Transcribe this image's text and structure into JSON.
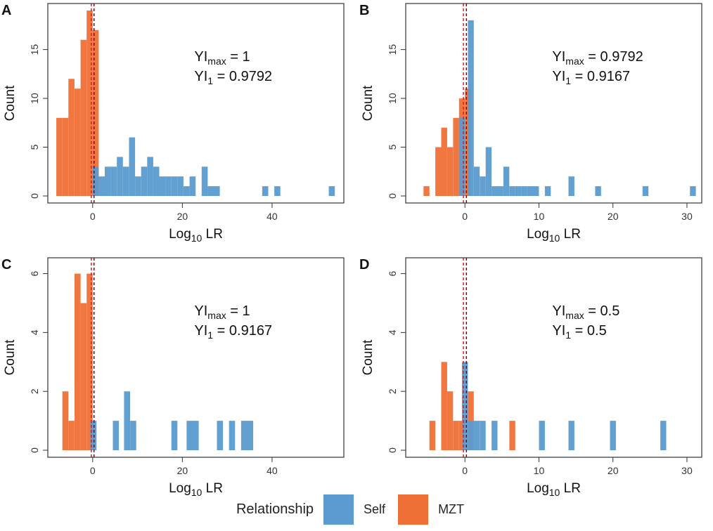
{
  "colors": {
    "self": "#5b9bd0",
    "mzt": "#ef7036",
    "threshold": "#8b0000",
    "threshold2": "#e31a1c",
    "axis": "#333333"
  },
  "chart_data": [
    {
      "id": "A",
      "type": "histogram",
      "panel_label": "A",
      "xlabel_main": "Log",
      "xlabel_sub": "10",
      "xlabel_tail": " LR",
      "ylabel": "Count",
      "xlim": [
        -10,
        56
      ],
      "ylim": [
        0,
        19
      ],
      "xticks": [
        0,
        20,
        40
      ],
      "yticks": [
        0,
        5,
        10,
        15
      ],
      "binwidth": 1.35,
      "annotations": {
        "line1_prefix": "YI",
        "line1_sub": "max",
        "line1_value": " = 1",
        "line2_prefix": "YI",
        "line2_sub": "1",
        "line2_value": " = 0.9792"
      },
      "thresholds": [
        -0.3,
        0.3
      ],
      "series": [
        {
          "name": "MZT",
          "bars": [
            [
              -8.1,
              8
            ],
            [
              -6.75,
              8
            ],
            [
              -5.4,
              12
            ],
            [
              -4.05,
              11
            ],
            [
              -2.7,
              16
            ],
            [
              -1.35,
              19
            ],
            [
              0,
              17
            ]
          ]
        },
        {
          "name": "Self",
          "bars": [
            [
              0,
              3
            ],
            [
              1.35,
              2
            ],
            [
              2.7,
              3
            ],
            [
              4.05,
              3
            ],
            [
              5.4,
              4
            ],
            [
              6.75,
              3
            ],
            [
              8.1,
              6
            ],
            [
              9.45,
              2
            ],
            [
              10.8,
              3
            ],
            [
              12.15,
              4
            ],
            [
              13.5,
              3
            ],
            [
              14.85,
              2
            ],
            [
              16.2,
              2
            ],
            [
              17.55,
              2
            ],
            [
              18.9,
              2
            ],
            [
              20.25,
              1
            ],
            [
              21.6,
              2
            ],
            [
              22.95,
              0
            ],
            [
              24.3,
              3
            ],
            [
              25.65,
              1
            ],
            [
              27,
              1
            ],
            [
              37.8,
              1
            ],
            [
              40.5,
              1
            ],
            [
              52.65,
              1
            ]
          ]
        }
      ]
    },
    {
      "id": "B",
      "type": "histogram",
      "panel_label": "B",
      "xlabel_main": "Log",
      "xlabel_sub": "10",
      "xlabel_tail": " LR",
      "ylabel": "Count",
      "xlim": [
        -8,
        32
      ],
      "ylim": [
        0,
        19
      ],
      "xticks": [
        0,
        10,
        20,
        30
      ],
      "yticks": [
        0,
        5,
        10,
        15
      ],
      "binwidth": 0.8,
      "annotations": {
        "line1_prefix": "YI",
        "line1_sub": "max",
        "line1_value": " = 0.9792",
        "line2_prefix": "YI",
        "line2_sub": "1",
        "line2_value": " = 0.9167"
      },
      "thresholds": [
        -0.2,
        0.2
      ],
      "series": [
        {
          "name": "MZT",
          "bars": [
            [
              -5.6,
              1
            ],
            [
              -4,
              5
            ],
            [
              -3.2,
              7
            ],
            [
              -2.4,
              5
            ],
            [
              -1.6,
              8
            ],
            [
              -0.8,
              10
            ],
            [
              0,
              11
            ]
          ]
        },
        {
          "name": "Self",
          "bars": [
            [
              -0.8,
              8
            ],
            [
              0.4,
              18
            ],
            [
              1.2,
              3
            ],
            [
              2,
              2
            ],
            [
              2.8,
              5
            ],
            [
              3.6,
              1
            ],
            [
              4.4,
              1
            ],
            [
              5.2,
              3
            ],
            [
              6,
              1
            ],
            [
              6.8,
              1
            ],
            [
              7.6,
              1
            ],
            [
              8.4,
              1
            ],
            [
              9.2,
              1
            ],
            [
              10.8,
              1
            ],
            [
              14,
              2
            ],
            [
              17.6,
              1
            ],
            [
              24,
              1
            ],
            [
              30.4,
              1
            ]
          ]
        }
      ]
    },
    {
      "id": "C",
      "type": "histogram",
      "panel_label": "C",
      "xlabel_main": "Log",
      "xlabel_sub": "10",
      "xlabel_tail": " LR",
      "ylabel": "Count",
      "xlim": [
        -10,
        56
      ],
      "ylim": [
        0,
        6.3
      ],
      "xticks": [
        0,
        20,
        40
      ],
      "yticks": [
        0,
        2,
        4,
        6
      ],
      "binwidth": 1.35,
      "annotations": {
        "line1_prefix": "YI",
        "line1_sub": "max",
        "line1_value": " = 1",
        "line2_prefix": "YI",
        "line2_sub": "1",
        "line2_value": " = 0.9167"
      },
      "thresholds": [
        -0.3,
        0.3
      ],
      "series": [
        {
          "name": "MZT",
          "bars": [
            [
              -6.75,
              2
            ],
            [
              -5.4,
              1
            ],
            [
              -4.05,
              6
            ],
            [
              -2.7,
              5
            ],
            [
              -1.35,
              6
            ]
          ]
        },
        {
          "name": "Self",
          "bars": [
            [
              -0.5,
              1
            ],
            [
              4.5,
              1
            ],
            [
              7,
              2
            ],
            [
              8.35,
              1
            ],
            [
              17.55,
              1
            ],
            [
              20.95,
              1
            ],
            [
              22.3,
              1
            ],
            [
              27.7,
              1
            ],
            [
              30.4,
              1
            ],
            [
              33.1,
              1
            ],
            [
              34.45,
              1
            ]
          ]
        }
      ]
    },
    {
      "id": "D",
      "type": "histogram",
      "panel_label": "D",
      "xlabel_main": "Log",
      "xlabel_sub": "10",
      "xlabel_tail": " LR",
      "ylabel": "Count",
      "xlim": [
        -8,
        32
      ],
      "ylim": [
        0,
        6.3
      ],
      "xticks": [
        0,
        10,
        20,
        30
      ],
      "yticks": [
        0,
        2,
        4,
        6
      ],
      "binwidth": 0.8,
      "annotations": {
        "line1_prefix": "YI",
        "line1_sub": "max",
        "line1_value": " = 0.5",
        "line2_prefix": "YI",
        "line2_sub": "1",
        "line2_value": " = 0.5"
      },
      "thresholds": [
        -0.2,
        0.2
      ],
      "series": [
        {
          "name": "MZT",
          "bars": [
            [
              -4.8,
              1
            ],
            [
              -3.2,
              3
            ],
            [
              -2.4,
              2
            ],
            [
              -1.6,
              1
            ],
            [
              -0.8,
              1
            ],
            [
              0.4,
              2
            ],
            [
              6,
              1
            ]
          ]
        },
        {
          "name": "Self",
          "bars": [
            [
              -0.4,
              3
            ],
            [
              0.4,
              1
            ],
            [
              1.2,
              1
            ],
            [
              2,
              1
            ],
            [
              3.6,
              1
            ],
            [
              10,
              1
            ],
            [
              14,
              1
            ],
            [
              19.6,
              1
            ],
            [
              26.4,
              1
            ]
          ]
        }
      ]
    }
  ],
  "legend": {
    "title": "Relationship",
    "items": [
      {
        "label": "Self"
      },
      {
        "label": "MZT"
      }
    ]
  }
}
